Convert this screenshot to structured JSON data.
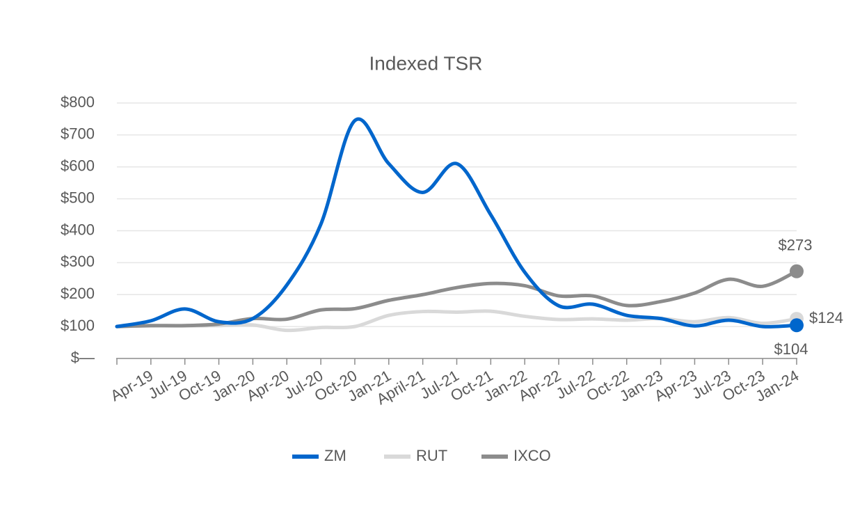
{
  "chart_data": {
    "type": "line",
    "title": "Indexed TSR",
    "categories": [
      null,
      "Apr-19",
      "Jul-19",
      "Oct-19",
      "Jan-20",
      "Apr-20",
      "Jul-20",
      "Oct-20",
      "Jan-21",
      "April-21",
      "Jul-21",
      "Oct-21",
      "Jan-22",
      "Apr-22",
      "Jul-22",
      "Oct-22",
      "Jan-23",
      "Apr-23",
      "Jul-23",
      "Oct-23",
      "Jan-24"
    ],
    "series": [
      {
        "name": "ZM",
        "color": "#0066cc",
        "values": [
          100,
          118,
          155,
          115,
          125,
          230,
          420,
          745,
          610,
          520,
          610,
          450,
          270,
          165,
          170,
          135,
          125,
          102,
          120,
          100,
          104
        ],
        "value_labels": [
          null,
          null,
          null,
          null,
          null,
          null,
          null,
          null,
          null,
          null,
          null,
          null,
          null,
          null,
          null,
          null,
          null,
          null,
          null,
          null,
          "$104"
        ]
      },
      {
        "name": "RUT",
        "color": "#d9d9d9",
        "values": [
          100,
          102,
          102,
          103,
          105,
          88,
          97,
          100,
          135,
          147,
          145,
          148,
          132,
          122,
          124,
          120,
          125,
          115,
          128,
          110,
          124
        ],
        "value_labels": [
          null,
          null,
          null,
          null,
          null,
          null,
          null,
          null,
          null,
          null,
          null,
          null,
          null,
          null,
          null,
          null,
          null,
          null,
          null,
          null,
          "$124"
        ]
      },
      {
        "name": "IXCO",
        "color": "#8c8c8c",
        "values": [
          100,
          103,
          103,
          108,
          125,
          123,
          152,
          156,
          182,
          200,
          222,
          235,
          228,
          196,
          196,
          166,
          178,
          205,
          248,
          226,
          273
        ],
        "value_labels": [
          null,
          null,
          null,
          null,
          null,
          null,
          null,
          null,
          null,
          null,
          null,
          null,
          null,
          null,
          null,
          null,
          null,
          null,
          null,
          null,
          "$273"
        ]
      }
    ],
    "ylim": [
      0,
      800
    ],
    "yticks": [
      {
        "value": 0,
        "label": "$—"
      },
      {
        "value": 100,
        "label": "$100"
      },
      {
        "value": 200,
        "label": "$200"
      },
      {
        "value": 300,
        "label": "$300"
      },
      {
        "value": 400,
        "label": "$400"
      },
      {
        "value": 500,
        "label": "$500"
      },
      {
        "value": 600,
        "label": "$600"
      },
      {
        "value": 700,
        "label": "$700"
      },
      {
        "value": 800,
        "label": "$800"
      }
    ],
    "grid": true
  }
}
